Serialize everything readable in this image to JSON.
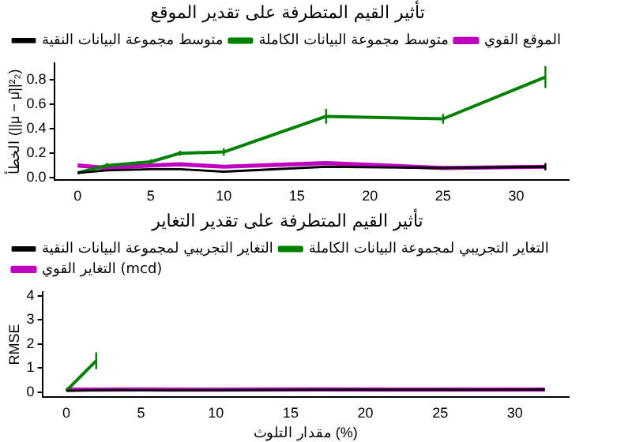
{
  "chart_data": [
    {
      "type": "line",
      "title": "تأثير القيم المتطرفة على تقدير الموقع",
      "ylabel": "الخطأ (||μ − μ̂||²₂)",
      "x": [
        0,
        2,
        5,
        7,
        10,
        17,
        25,
        32
      ],
      "xlim": [
        -1.6,
        33.6
      ],
      "xticks": [
        0,
        5,
        10,
        15,
        20,
        25,
        30
      ],
      "ylim": [
        -0.02,
        0.93
      ],
      "yticks": [
        {
          "value": 0,
          "label": "0.0"
        },
        0.2,
        0.4,
        0.6,
        0.8
      ],
      "legend": "top",
      "grid": false,
      "marker": "none",
      "series": [
        {
          "name": "الموقع القوي",
          "color": "#bf00bf",
          "values": [
            0.1,
            0.08,
            0.1,
            0.11,
            0.09,
            0.12,
            0.08,
            0.09
          ]
        },
        {
          "name": "متوسط مجموعة البيانات الكاملة",
          "color": "#008000",
          "values": [
            0.04,
            0.1,
            0.13,
            0.2,
            0.21,
            0.5,
            0.48,
            0.82
          ],
          "errors": [
            null,
            0.02,
            0.02,
            0.02,
            0.03,
            0.06,
            0.04,
            0.09
          ]
        },
        {
          "name": "متوسط مجموعة البيانات النقية",
          "color": "#000000",
          "values": [
            0.04,
            0.06,
            0.07,
            0.07,
            0.05,
            0.09,
            0.08,
            0.09
          ],
          "errors": [
            null,
            null,
            null,
            null,
            null,
            null,
            null,
            0.03
          ]
        }
      ]
    },
    {
      "type": "line",
      "title": "تأثير القيم المتطرفة على تقدير التغاير",
      "xlabel": "مقدار التلوث (%)",
      "ylabel": "RMSE",
      "x": [
        0,
        2,
        5,
        7,
        10,
        17,
        25,
        32
      ],
      "xlim": [
        -1.6,
        33.6
      ],
      "xticks": [
        0,
        5,
        10,
        15,
        20,
        25,
        30
      ],
      "ylim": [
        -0.2,
        4.15
      ],
      "yticks": [
        0,
        1,
        2,
        3,
        4
      ],
      "legend": "top",
      "grid": false,
      "marker": "none",
      "series": [
        {
          "name": "التغاير القوي (mcd)",
          "color": "#bf00bf",
          "values": [
            0.1,
            0.1,
            0.11,
            0.1,
            0.1,
            0.11,
            0.1,
            0.1
          ]
        },
        {
          "name": "التغاير التجريبي لمجموعة البيانات الكاملة",
          "color": "#008000",
          "values": [
            0.05,
            1.3,
            null,
            null,
            null,
            null,
            null,
            null
          ],
          "errors": [
            null,
            0.35,
            null,
            null,
            null,
            null,
            null,
            null
          ]
        },
        {
          "name": "التغاير التجريبي لمجموعة البيانات النقية",
          "color": "#000000",
          "values": [
            0.05,
            0.08,
            0.08,
            0.07,
            0.08,
            0.09,
            0.09,
            0.1
          ]
        }
      ]
    }
  ]
}
